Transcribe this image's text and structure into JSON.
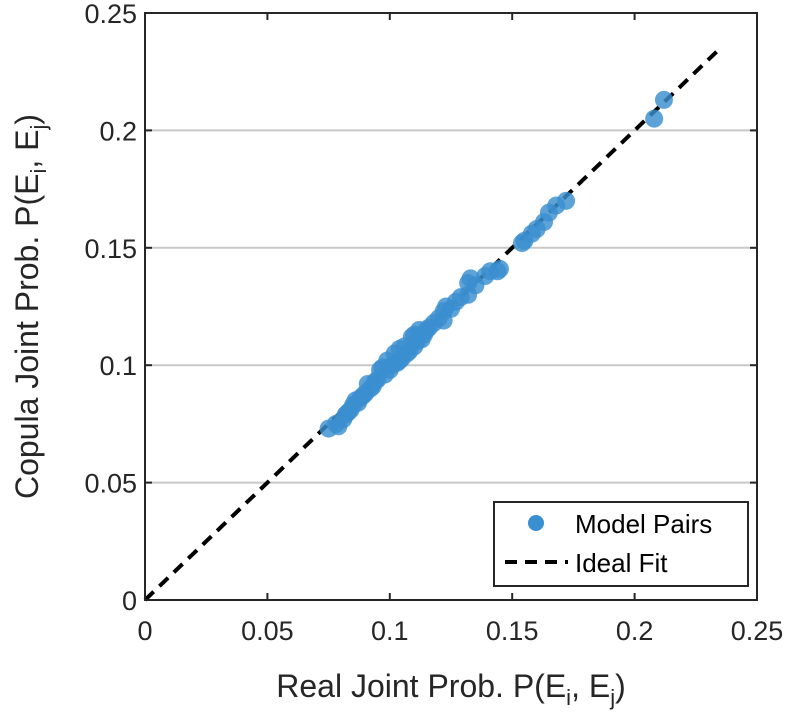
{
  "chart_data": {
    "type": "scatter",
    "xlabel": "Real Joint Prob. P(E",
    "xlabel_sub_i": "i",
    "xlabel_mid": ", E",
    "xlabel_sub_j": "j",
    "xlabel_end": ")",
    "ylabel": "Copula Joint Prob. P(E",
    "ylabel_sub_i": "i",
    "ylabel_mid": ", E",
    "ylabel_sub_j": "j",
    "ylabel_end": ")",
    "xlim": [
      0,
      0.25
    ],
    "ylim": [
      0,
      0.25
    ],
    "xticks": [
      0,
      0.05,
      0.1,
      0.15,
      0.2,
      0.25
    ],
    "yticks": [
      0,
      0.05,
      0.1,
      0.15,
      0.2,
      0.25
    ],
    "xtick_labels": [
      "0",
      "0.05",
      "0.1",
      "0.15",
      "0.2",
      "0.25"
    ],
    "ytick_labels": [
      "0",
      "0.05",
      "0.1",
      "0.15",
      "0.2",
      "0.25"
    ],
    "grid": "horizontal",
    "legend_position": "bottom-right",
    "colors": {
      "points": "#3a8fd0",
      "ideal_line": "#000000",
      "grid": "#c8c8c8",
      "axis": "#262626"
    },
    "series": [
      {
        "name": "Model Pairs",
        "kind": "scatter",
        "points": [
          [
            0.212,
            0.213
          ],
          [
            0.208,
            0.205
          ],
          [
            0.172,
            0.17
          ],
          [
            0.168,
            0.168
          ],
          [
            0.165,
            0.165
          ],
          [
            0.163,
            0.161
          ],
          [
            0.16,
            0.158
          ],
          [
            0.158,
            0.156
          ],
          [
            0.155,
            0.153
          ],
          [
            0.154,
            0.152
          ],
          [
            0.145,
            0.141
          ],
          [
            0.144,
            0.14
          ],
          [
            0.141,
            0.14
          ],
          [
            0.139,
            0.138
          ],
          [
            0.135,
            0.134
          ],
          [
            0.133,
            0.137
          ],
          [
            0.132,
            0.135
          ],
          [
            0.132,
            0.13
          ],
          [
            0.129,
            0.129
          ],
          [
            0.127,
            0.127
          ],
          [
            0.125,
            0.124
          ],
          [
            0.123,
            0.125
          ],
          [
            0.122,
            0.123
          ],
          [
            0.122,
            0.119
          ],
          [
            0.12,
            0.12
          ],
          [
            0.118,
            0.118
          ],
          [
            0.116,
            0.116
          ],
          [
            0.115,
            0.115
          ],
          [
            0.114,
            0.113
          ],
          [
            0.113,
            0.111
          ],
          [
            0.112,
            0.115
          ],
          [
            0.111,
            0.11
          ],
          [
            0.11,
            0.113
          ],
          [
            0.11,
            0.108
          ],
          [
            0.109,
            0.112
          ],
          [
            0.108,
            0.106
          ],
          [
            0.107,
            0.105
          ],
          [
            0.106,
            0.108
          ],
          [
            0.105,
            0.103
          ],
          [
            0.104,
            0.102
          ],
          [
            0.104,
            0.107
          ],
          [
            0.103,
            0.101
          ],
          [
            0.102,
            0.105
          ],
          [
            0.101,
            0.1
          ],
          [
            0.1,
            0.098
          ],
          [
            0.099,
            0.102
          ],
          [
            0.098,
            0.096
          ],
          [
            0.097,
            0.099
          ],
          [
            0.096,
            0.098
          ],
          [
            0.095,
            0.094
          ],
          [
            0.094,
            0.093
          ],
          [
            0.093,
            0.091
          ],
          [
            0.092,
            0.09
          ],
          [
            0.091,
            0.092
          ],
          [
            0.09,
            0.088
          ],
          [
            0.089,
            0.087
          ],
          [
            0.088,
            0.086
          ],
          [
            0.087,
            0.084
          ],
          [
            0.086,
            0.085
          ],
          [
            0.085,
            0.083
          ],
          [
            0.084,
            0.081
          ],
          [
            0.083,
            0.08
          ],
          [
            0.082,
            0.079
          ],
          [
            0.081,
            0.077
          ],
          [
            0.079,
            0.074
          ],
          [
            0.078,
            0.075
          ],
          [
            0.075,
            0.073
          ]
        ]
      },
      {
        "name": "Ideal Fit",
        "kind": "line",
        "style": "dashed",
        "points": [
          [
            0,
            0
          ],
          [
            0.235,
            0.235
          ]
        ]
      }
    ]
  }
}
